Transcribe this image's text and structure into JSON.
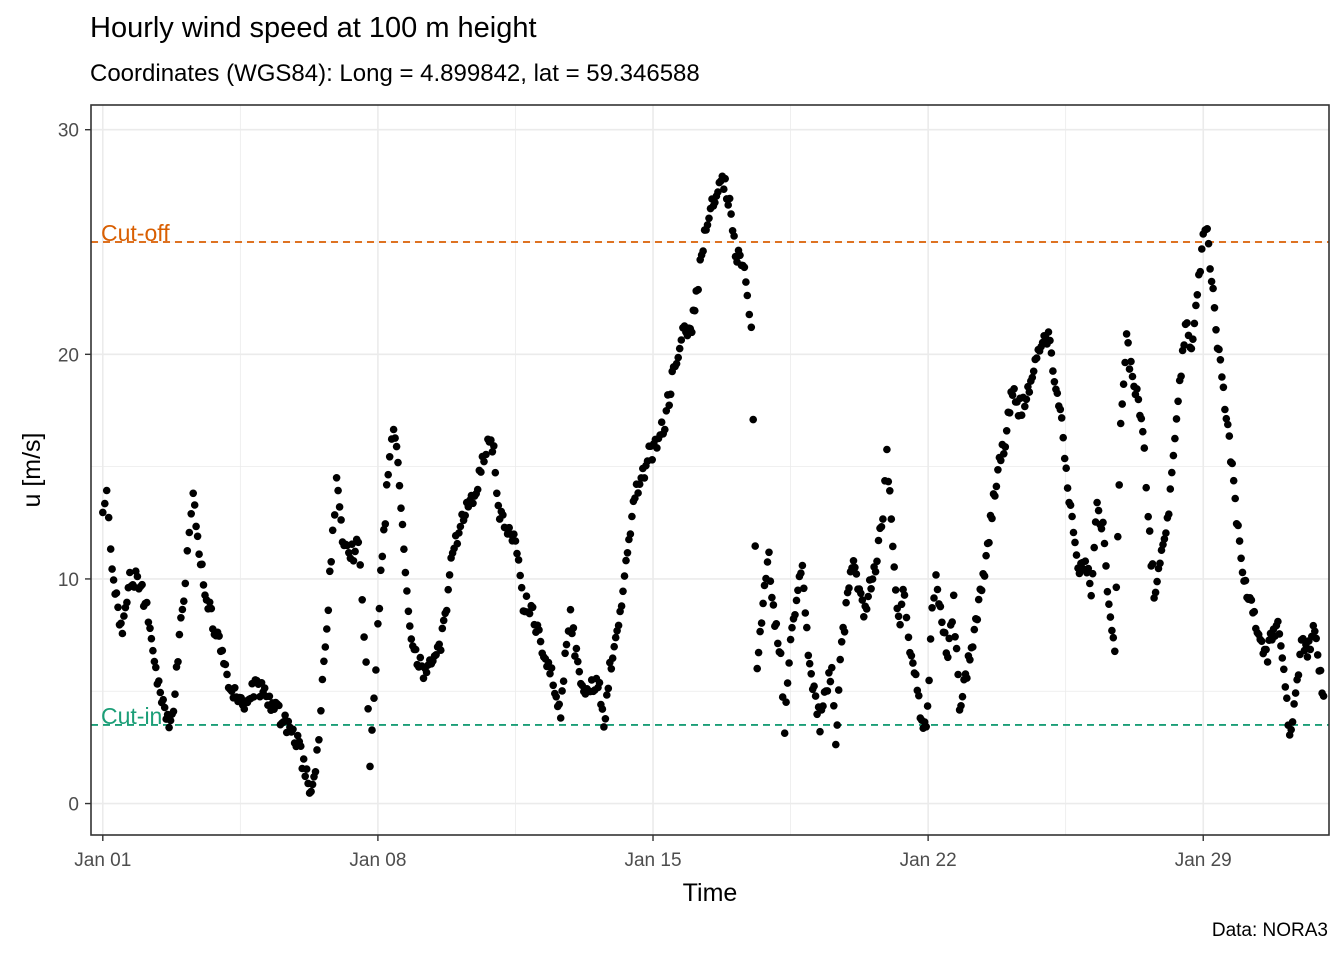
{
  "header": {
    "title": "Hourly wind speed at 100 m height",
    "subtitle": "Coordinates (WGS84): Long = 4.899842, lat = 59.346588"
  },
  "caption": "Data: NORA3",
  "colors": {
    "points": "#000000",
    "grid": "#ebebeb",
    "panel_border": "#333333",
    "cut_off": "#D95F02",
    "cut_in": "#1B9E77"
  },
  "chart_data": {
    "type": "scatter",
    "xlabel": "Time",
    "ylabel": "u [m/s]",
    "x_unit": "day of January (1 = Jan 01 00:00)",
    "xlim": [
      0.7,
      32.2
    ],
    "ylim": [
      -1.4,
      31.1
    ],
    "x_ticks": [
      {
        "value": 1,
        "label": "Jan 01"
      },
      {
        "value": 8,
        "label": "Jan 08"
      },
      {
        "value": 15,
        "label": "Jan 15"
      },
      {
        "value": 22,
        "label": "Jan 22"
      },
      {
        "value": 29,
        "label": "Jan 29"
      }
    ],
    "y_ticks": [
      0,
      10,
      20,
      30
    ],
    "grid": true,
    "reference_lines": [
      {
        "name": "cut_off",
        "label": "Cut-off",
        "y": 25,
        "style": "dashed"
      },
      {
        "name": "cut_in",
        "label": "Cut-in",
        "y": 3.5,
        "style": "dashed"
      }
    ],
    "anchors": [
      [
        1.0,
        13.4
      ],
      [
        1.1,
        13.5
      ],
      [
        1.2,
        11.2
      ],
      [
        1.35,
        9.0
      ],
      [
        1.5,
        7.5
      ],
      [
        1.65,
        9.8
      ],
      [
        1.8,
        10.0
      ],
      [
        2.0,
        9.5
      ],
      [
        2.2,
        8.0
      ],
      [
        2.35,
        6.0
      ],
      [
        2.5,
        4.7
      ],
      [
        2.65,
        3.6
      ],
      [
        2.8,
        4.5
      ],
      [
        2.95,
        7.5
      ],
      [
        3.1,
        10.0
      ],
      [
        3.2,
        12.0
      ],
      [
        3.3,
        13.5
      ],
      [
        3.45,
        11.5
      ],
      [
        3.6,
        9.5
      ],
      [
        3.8,
        8.0
      ],
      [
        4.0,
        7.0
      ],
      [
        4.2,
        5.5
      ],
      [
        4.4,
        4.8
      ],
      [
        4.6,
        4.5
      ],
      [
        4.8,
        5.0
      ],
      [
        5.0,
        5.2
      ],
      [
        5.2,
        4.8
      ],
      [
        5.4,
        4.2
      ],
      [
        5.6,
        3.7
      ],
      [
        5.8,
        3.0
      ],
      [
        6.0,
        2.5
      ],
      [
        6.15,
        1.5
      ],
      [
        6.3,
        0.5
      ],
      [
        6.45,
        2.0
      ],
      [
        6.55,
        4.5
      ],
      [
        6.7,
        8.0
      ],
      [
        6.85,
        11.8
      ],
      [
        6.95,
        14.2
      ],
      [
        7.1,
        12.0
      ],
      [
        7.3,
        11.0
      ],
      [
        7.5,
        11.5
      ],
      [
        7.6,
        9.0
      ],
      [
        7.7,
        6.0
      ],
      [
        7.8,
        2.0
      ],
      [
        7.9,
        4.5
      ],
      [
        8.0,
        8.0
      ],
      [
        8.15,
        12.0
      ],
      [
        8.3,
        15.5
      ],
      [
        8.4,
        16.7
      ],
      [
        8.55,
        14.5
      ],
      [
        8.7,
        10.0
      ],
      [
        8.85,
        7.0
      ],
      [
        9.0,
        6.5
      ],
      [
        9.2,
        5.8
      ],
      [
        9.4,
        6.3
      ],
      [
        9.6,
        6.8
      ],
      [
        9.75,
        9.0
      ],
      [
        9.9,
        11.0
      ],
      [
        10.1,
        12.5
      ],
      [
        10.3,
        13.5
      ],
      [
        10.5,
        14.0
      ],
      [
        10.7,
        15.5
      ],
      [
        10.8,
        16.2
      ],
      [
        10.95,
        15.5
      ],
      [
        11.1,
        13.0
      ],
      [
        11.3,
        12.0
      ],
      [
        11.5,
        11.5
      ],
      [
        11.7,
        9.0
      ],
      [
        11.9,
        8.5
      ],
      [
        12.1,
        7.5
      ],
      [
        12.3,
        6.5
      ],
      [
        12.5,
        5.0
      ],
      [
        12.65,
        4.0
      ],
      [
        12.8,
        7.5
      ],
      [
        12.9,
        8.3
      ],
      [
        13.05,
        6.5
      ],
      [
        13.2,
        5.5
      ],
      [
        13.4,
        5.0
      ],
      [
        13.6,
        5.5
      ],
      [
        13.75,
        3.5
      ],
      [
        13.9,
        6.0
      ],
      [
        14.05,
        7.5
      ],
      [
        14.2,
        9.0
      ],
      [
        14.35,
        11.0
      ],
      [
        14.5,
        13.5
      ],
      [
        14.7,
        14.5
      ],
      [
        14.9,
        15.5
      ],
      [
        15.1,
        16.0
      ],
      [
        15.3,
        17.0
      ],
      [
        15.45,
        18.5
      ],
      [
        15.6,
        20.0
      ],
      [
        15.8,
        21.0
      ],
      [
        15.95,
        20.8
      ],
      [
        16.1,
        22.5
      ],
      [
        16.2,
        24.0
      ],
      [
        16.35,
        25.5
      ],
      [
        16.5,
        26.5
      ],
      [
        16.65,
        27.2
      ],
      [
        16.8,
        27.7
      ],
      [
        16.95,
        26.5
      ],
      [
        17.1,
        24.5
      ],
      [
        17.25,
        24.0
      ],
      [
        17.4,
        23.0
      ],
      [
        17.5,
        21.0
      ],
      [
        17.55,
        17.0
      ],
      [
        17.65,
        6.0
      ],
      [
        17.8,
        9.0
      ],
      [
        17.95,
        11.0
      ],
      [
        18.1,
        8.0
      ],
      [
        18.25,
        6.5
      ],
      [
        18.35,
        3.0
      ],
      [
        18.5,
        7.5
      ],
      [
        18.65,
        9.0
      ],
      [
        18.8,
        11.0
      ],
      [
        18.95,
        6.5
      ],
      [
        19.1,
        5.0
      ],
      [
        19.25,
        3.5
      ],
      [
        19.4,
        5.0
      ],
      [
        19.55,
        6.0
      ],
      [
        19.65,
        2.9
      ],
      [
        19.8,
        7.0
      ],
      [
        19.95,
        9.0
      ],
      [
        20.1,
        11.0
      ],
      [
        20.25,
        9.5
      ],
      [
        20.4,
        8.5
      ],
      [
        20.55,
        10.0
      ],
      [
        20.7,
        11.0
      ],
      [
        20.85,
        12.8
      ],
      [
        20.95,
        16.0
      ],
      [
        21.1,
        11.0
      ],
      [
        21.25,
        8.0
      ],
      [
        21.4,
        9.5
      ],
      [
        21.5,
        7.0
      ],
      [
        21.65,
        6.0
      ],
      [
        21.8,
        4.0
      ],
      [
        21.95,
        3.0
      ],
      [
        22.1,
        8.5
      ],
      [
        22.2,
        10.0
      ],
      [
        22.35,
        8.5
      ],
      [
        22.5,
        6.5
      ],
      [
        22.65,
        9.0
      ],
      [
        22.8,
        4.5
      ],
      [
        22.95,
        5.5
      ],
      [
        23.1,
        7.0
      ],
      [
        23.25,
        8.5
      ],
      [
        23.4,
        10.0
      ],
      [
        23.55,
        12.0
      ],
      [
        23.7,
        14.0
      ],
      [
        23.85,
        15.5
      ],
      [
        24.0,
        16.5
      ],
      [
        24.15,
        18.5
      ],
      [
        24.3,
        17.5
      ],
      [
        24.5,
        18.0
      ],
      [
        24.65,
        19.0
      ],
      [
        24.8,
        20.0
      ],
      [
        24.95,
        21.0
      ],
      [
        25.1,
        20.5
      ],
      [
        25.25,
        18.5
      ],
      [
        25.4,
        17.0
      ],
      [
        25.55,
        14.0
      ],
      [
        25.7,
        12.0
      ],
      [
        25.85,
        10.0
      ],
      [
        26.0,
        11.0
      ],
      [
        26.15,
        9.5
      ],
      [
        26.3,
        13.0
      ],
      [
        26.45,
        12.5
      ],
      [
        26.6,
        8.5
      ],
      [
        26.75,
        7.0
      ],
      [
        26.9,
        17.0
      ],
      [
        27.05,
        20.5
      ],
      [
        27.2,
        19.0
      ],
      [
        27.35,
        18.0
      ],
      [
        27.5,
        16.0
      ],
      [
        27.6,
        12.5
      ],
      [
        27.75,
        9.5
      ],
      [
        27.9,
        10.5
      ],
      [
        28.05,
        12.0
      ],
      [
        28.2,
        14.5
      ],
      [
        28.4,
        18.5
      ],
      [
        28.55,
        21.5
      ],
      [
        28.7,
        20.5
      ],
      [
        28.85,
        22.5
      ],
      [
        29.0,
        25.0
      ],
      [
        29.1,
        26.0
      ],
      [
        29.25,
        22.5
      ],
      [
        29.4,
        20.0
      ],
      [
        29.55,
        17.5
      ],
      [
        29.7,
        15.5
      ],
      [
        29.85,
        12.5
      ],
      [
        30.0,
        10.5
      ],
      [
        30.15,
        9.0
      ],
      [
        30.3,
        8.5
      ],
      [
        30.45,
        7.0
      ],
      [
        30.6,
        6.5
      ],
      [
        30.75,
        7.5
      ],
      [
        30.9,
        8.0
      ],
      [
        31.05,
        6.0
      ],
      [
        31.2,
        3.0
      ],
      [
        31.35,
        4.5
      ],
      [
        31.5,
        7.5
      ],
      [
        31.65,
        6.5
      ],
      [
        31.8,
        8.0
      ],
      [
        31.95,
        6.0
      ],
      [
        32.1,
        4.0
      ]
    ]
  }
}
